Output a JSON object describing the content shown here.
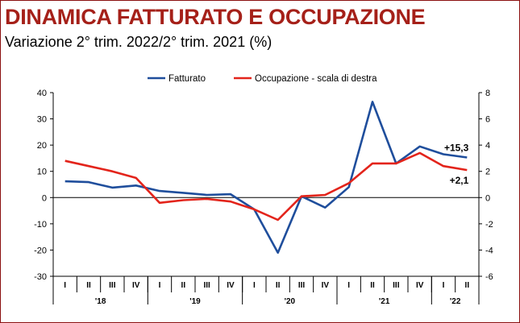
{
  "header": {
    "title": "DINAMICA FATTURATO E OCCUPAZIONE",
    "subtitle": "Variazione 2° trim. 2022/2° trim. 2021 (%)"
  },
  "chart_data": {
    "type": "line",
    "categories": [
      "I",
      "II",
      "III",
      "IV",
      "I",
      "II",
      "III",
      "IV",
      "I",
      "II",
      "III",
      "IV",
      "I",
      "II",
      "III",
      "IV",
      "I",
      "II"
    ],
    "year_groups": [
      {
        "label": "'18",
        "start": 0,
        "count": 4
      },
      {
        "label": "'19",
        "start": 4,
        "count": 4
      },
      {
        "label": "'20",
        "start": 8,
        "count": 4
      },
      {
        "label": "'21",
        "start": 12,
        "count": 4
      },
      {
        "label": "'22",
        "start": 16,
        "count": 2
      }
    ],
    "left_axis": {
      "min": -30,
      "max": 40,
      "ticks": [
        "-30",
        "-20",
        "-10",
        "0",
        "10",
        "20",
        "30",
        "40"
      ]
    },
    "right_axis": {
      "min": -6,
      "max": 8,
      "ticks": [
        "-6",
        "-4",
        "-2",
        "0",
        "2",
        "4",
        "6",
        "8"
      ]
    },
    "series": [
      {
        "name": "Fatturato",
        "axis": "left",
        "color": "#1f4e9c",
        "values": [
          6.2,
          5.9,
          3.8,
          4.6,
          2.5,
          1.8,
          1.0,
          1.3,
          -4.5,
          -21.0,
          0.5,
          -3.8,
          4.0,
          36.5,
          13.0,
          19.5,
          16.5,
          15.3
        ],
        "end_label": "+15,3"
      },
      {
        "name": "Occupazione - scala di destra",
        "axis": "right",
        "color": "#e3241b",
        "values": [
          2.8,
          2.4,
          2.0,
          1.5,
          -0.4,
          -0.2,
          -0.1,
          -0.3,
          -0.9,
          -1.7,
          0.1,
          0.2,
          1.1,
          2.6,
          2.6,
          3.4,
          2.4,
          2.1
        ],
        "end_label": "+2,1"
      }
    ],
    "legend_position": "top",
    "grid": false
  }
}
